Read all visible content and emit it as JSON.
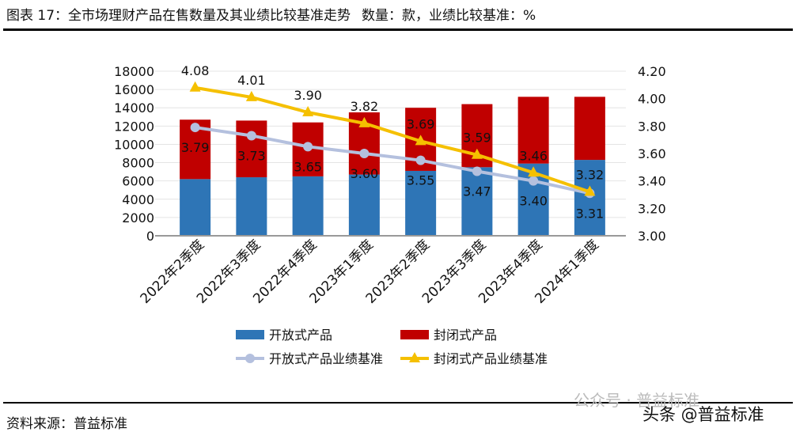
{
  "title": {
    "main": "图表 17：全市场理财产品在售数量及其业绩比较基准走势",
    "units": "数量：款，业绩比较基准：%"
  },
  "source": "资料来源：普益标准",
  "watermarks": [
    "公众号 · 普益标准",
    "头条 @普益标准"
  ],
  "chart_data": {
    "type": "bar+line",
    "categories": [
      "2022年2季度",
      "2022年3季度",
      "2022年4季度",
      "2023年1季度",
      "2023年2季度",
      "2023年3季度",
      "2023年4季度",
      "2024年1季度"
    ],
    "bar_series": [
      {
        "name": "开放式产品",
        "color": "#2e75b6",
        "values": [
          6200,
          6400,
          6500,
          6700,
          7100,
          7500,
          7900,
          8300
        ]
      },
      {
        "name": "封闭式产品",
        "color": "#c00000",
        "values": [
          6500,
          6200,
          5900,
          6800,
          6900,
          6900,
          7300,
          6900
        ]
      }
    ],
    "line_series": [
      {
        "name": "开放式产品业绩基准",
        "color": "#b4c0de",
        "marker": "circle",
        "values": [
          3.79,
          3.73,
          3.65,
          3.6,
          3.55,
          3.47,
          3.4,
          3.31
        ],
        "labels": [
          "3.79",
          "3.73",
          "3.65",
          "3.60",
          "3.55",
          "3.47",
          "3.40",
          "3.31"
        ]
      },
      {
        "name": "封闭式产品业绩基准",
        "color": "#f5c000",
        "marker": "triangle",
        "values": [
          4.08,
          4.01,
          3.9,
          3.82,
          3.69,
          3.59,
          3.46,
          3.32
        ],
        "labels": [
          "4.08",
          "4.01",
          "3.90",
          "3.82",
          "3.69",
          "3.59",
          "3.46",
          "3.32"
        ]
      }
    ],
    "y_left": {
      "min": 0,
      "max": 18000,
      "ticks": [
        "0",
        "2000",
        "4000",
        "6000",
        "8000",
        "10000",
        "12000",
        "14000",
        "16000",
        "18000"
      ]
    },
    "y_right": {
      "min": 3.0,
      "max": 4.2,
      "ticks": [
        "3.00",
        "3.20",
        "3.40",
        "3.60",
        "3.80",
        "4.00",
        "4.20"
      ]
    },
    "grid": true,
    "legend": "bottom",
    "bars_stacked": true
  }
}
